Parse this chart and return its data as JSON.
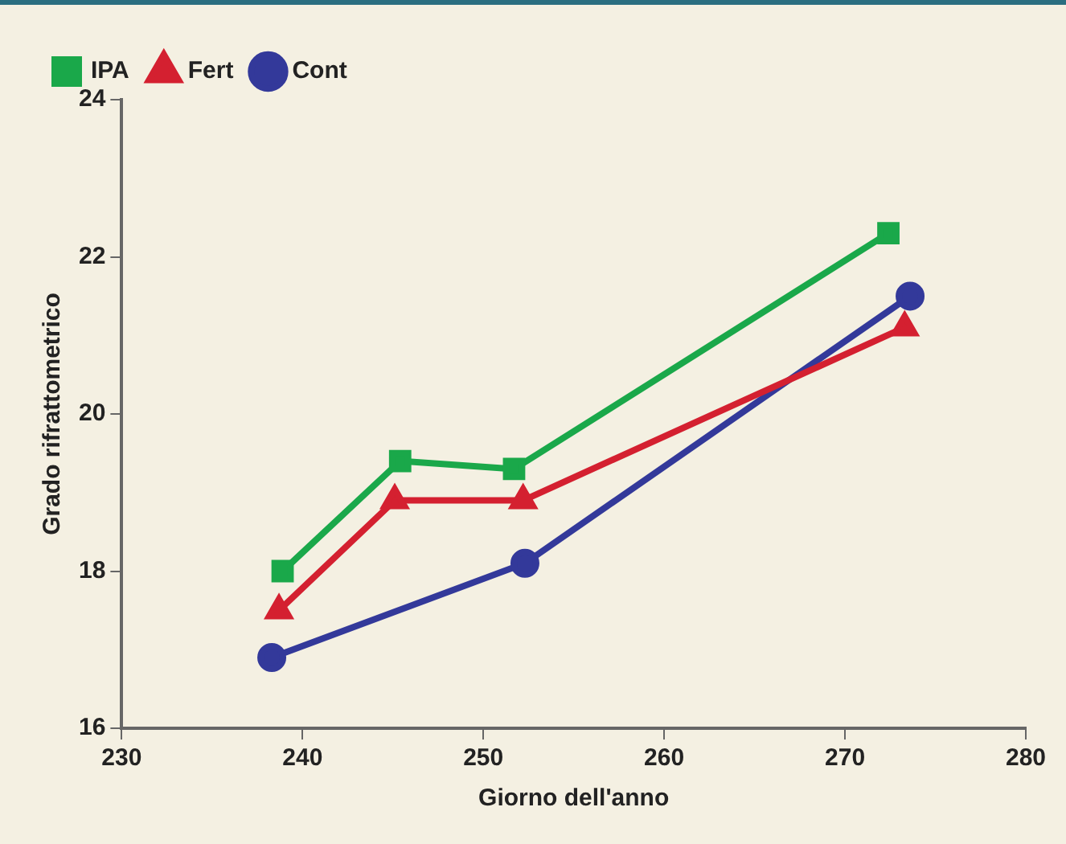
{
  "chart_data": {
    "type": "line",
    "xlabel": "Giorno dell'anno",
    "ylabel": "Grado rifrattometrico",
    "xlim": [
      230,
      280
    ],
    "xticks": [
      230,
      240,
      250,
      260,
      270,
      280
    ],
    "ylim": [
      16,
      24
    ],
    "yticks": [
      16,
      18,
      20,
      22,
      24
    ],
    "grid": false,
    "legend": "top left",
    "series": [
      {
        "name": "IPA",
        "color": "#1aa84a",
        "marker": "square",
        "x": [
          238.9,
          245.4,
          251.7,
          272.4
        ],
        "values": [
          18.0,
          19.4,
          19.3,
          22.3
        ]
      },
      {
        "name": "Fert",
        "color": "#d42030",
        "marker": "triangle",
        "x": [
          238.7,
          245.1,
          252.2,
          273.3
        ],
        "values": [
          17.5,
          18.9,
          18.9,
          21.1
        ]
      },
      {
        "name": "Cont",
        "color": "#33399a",
        "marker": "circle",
        "x": [
          238.3,
          252.3,
          273.6
        ],
        "values": [
          16.9,
          18.1,
          21.5
        ]
      }
    ]
  }
}
